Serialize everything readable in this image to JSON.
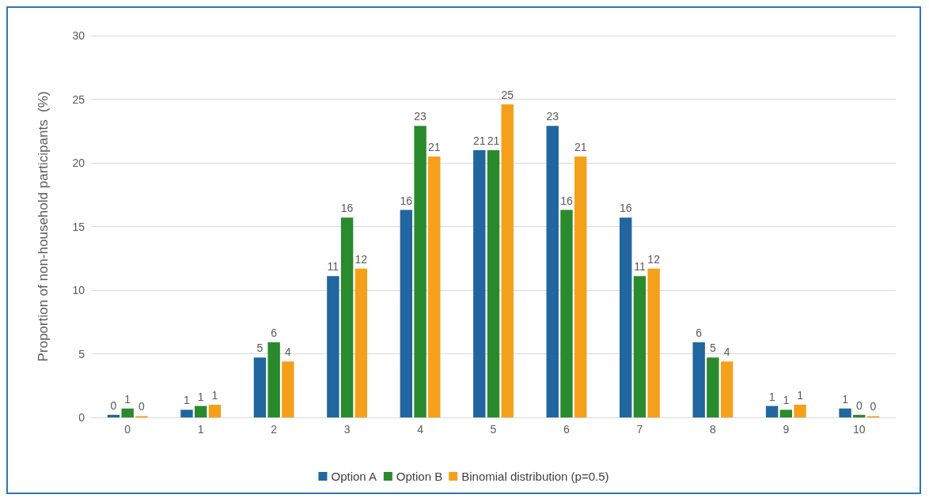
{
  "chart_data": {
    "type": "bar",
    "ylabel": "Proportion of non-household participants  (%)",
    "categories": [
      "0",
      "1",
      "2",
      "3",
      "4",
      "5",
      "6",
      "7",
      "8",
      "9",
      "10"
    ],
    "ylim": [
      0,
      30
    ],
    "yticks": [
      0,
      5,
      10,
      15,
      20,
      25,
      30
    ],
    "grid": "y",
    "legend": "bottom",
    "series": [
      {
        "name": "Option A",
        "color": "#21669e",
        "values": [
          0.2,
          0.6,
          4.7,
          11.1,
          16.3,
          21.0,
          22.9,
          15.7,
          5.9,
          0.9,
          0.7
        ],
        "value_labels": [
          "0",
          "1",
          "5",
          "11",
          "16",
          "21",
          "23",
          "16",
          "6",
          "1",
          "1"
        ]
      },
      {
        "name": "Option B",
        "color": "#2a8a2e",
        "values": [
          0.7,
          0.9,
          5.9,
          15.7,
          22.9,
          21.0,
          16.3,
          11.1,
          4.7,
          0.6,
          0.2
        ],
        "value_labels": [
          "1",
          "1",
          "6",
          "16",
          "23",
          "21",
          "16",
          "11",
          "5",
          "1",
          "0"
        ]
      },
      {
        "name": "Binomial distribution (p=0.5)",
        "color": "#f5a01a",
        "values": [
          0.1,
          1.0,
          4.4,
          11.7,
          20.5,
          24.6,
          20.5,
          11.7,
          4.4,
          1.0,
          0.1
        ],
        "value_labels": [
          "0",
          "1",
          "4",
          "12",
          "21",
          "25",
          "21",
          "12",
          "4",
          "1",
          "0"
        ]
      }
    ]
  }
}
